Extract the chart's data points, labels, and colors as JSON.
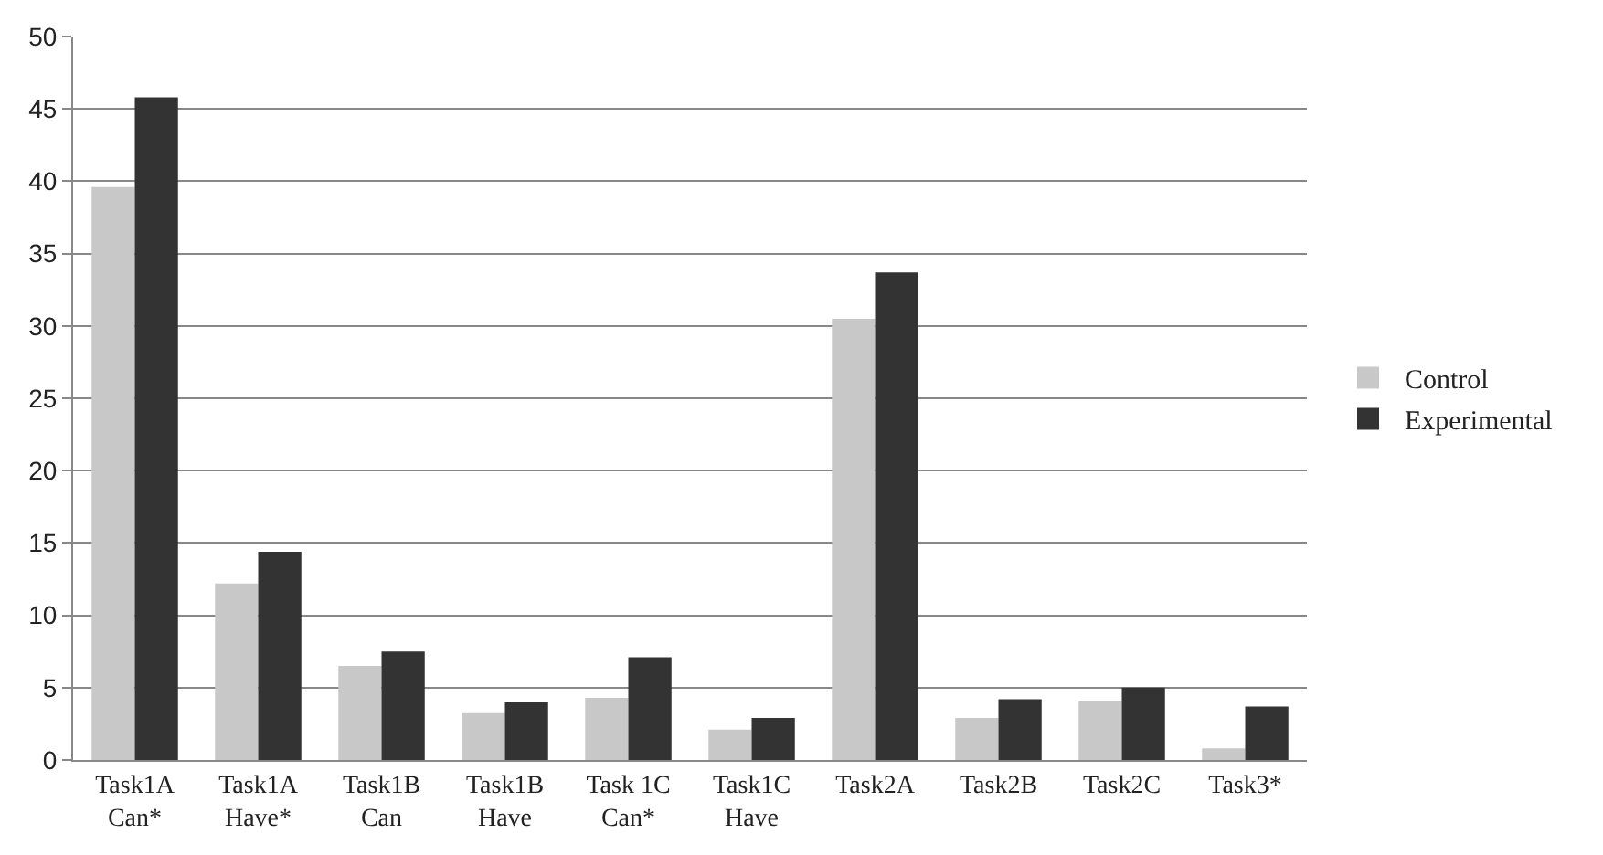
{
  "chart_data": {
    "type": "bar",
    "categories": [
      "Task1A\nCan*",
      "Task1A\nHave*",
      "Task1B\nCan",
      "Task1B\nHave",
      "Task 1C\nCan*",
      "Task1C\nHave",
      "Task2A",
      "Task2B",
      "Task2C",
      "Task3*"
    ],
    "series": [
      {
        "name": "Control",
        "color": "#c8c8c8",
        "values": [
          39.6,
          12.2,
          6.5,
          3.3,
          4.3,
          2.1,
          30.5,
          2.9,
          4.1,
          0.8
        ]
      },
      {
        "name": "Experimental",
        "color": "#333333",
        "values": [
          45.8,
          14.4,
          7.5,
          4.0,
          7.1,
          2.9,
          33.7,
          4.2,
          5.0,
          3.7
        ]
      }
    ],
    "ylim": [
      0,
      50
    ],
    "yticks": [
      0,
      5,
      10,
      15,
      20,
      25,
      30,
      35,
      40,
      45,
      50
    ],
    "grid": "y",
    "legend": "right"
  }
}
